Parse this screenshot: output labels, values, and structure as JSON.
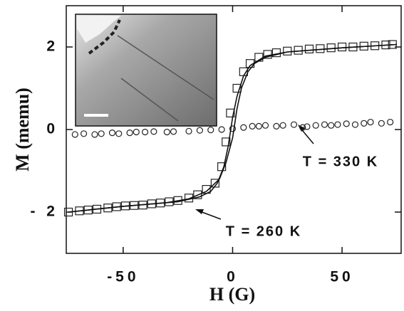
{
  "chart_data": {
    "type": "scatter",
    "xlabel": "H (G)",
    "ylabel": "M (memu)",
    "xlim": [
      -76,
      77
    ],
    "ylim": [
      -3,
      3
    ],
    "xticks": [
      -50,
      0,
      50
    ],
    "yticks": [
      {
        "value": -2,
        "label": "- 2"
      },
      0,
      2
    ],
    "series": [
      {
        "name": "T = 330 K",
        "marker": "circle",
        "color": "#222",
        "x": [
          -72,
          -68,
          -63,
          -60,
          -55,
          -52,
          -47,
          -44,
          -40,
          -36,
          -30,
          -27,
          -20,
          -15,
          -10,
          -5,
          0,
          5,
          9,
          12,
          15,
          20,
          23,
          28,
          32,
          34,
          38,
          42,
          45,
          48,
          52,
          56,
          60,
          63,
          68,
          72
        ],
        "values": [
          -0.12,
          -0.1,
          -0.12,
          -0.1,
          -0.08,
          -0.1,
          -0.08,
          -0.06,
          -0.06,
          -0.05,
          -0.06,
          -0.05,
          -0.04,
          -0.02,
          -0.01,
          0,
          0.02,
          0.05,
          0.08,
          0.08,
          0.1,
          0.08,
          0.1,
          0.12,
          0.05,
          0.07,
          0.1,
          0.12,
          0.1,
          0.12,
          0.14,
          0.12,
          0.15,
          0.18,
          0.15,
          0.18
        ]
      },
      {
        "name": "T = 260 K",
        "marker": "square",
        "color": "#222",
        "x": [
          -75,
          -70,
          -66,
          -62,
          -57,
          -53,
          -49,
          -45,
          -41,
          -37,
          -33,
          -29,
          -25,
          -20,
          -16,
          -12,
          -8,
          -5,
          -3,
          -1,
          2,
          5,
          8,
          12,
          16,
          20,
          25,
          30,
          35,
          40,
          45,
          50,
          55,
          60,
          65,
          70,
          73
        ],
        "values": [
          -2.0,
          -1.97,
          -1.95,
          -1.93,
          -1.9,
          -1.87,
          -1.85,
          -1.84,
          -1.83,
          -1.8,
          -1.78,
          -1.75,
          -1.72,
          -1.66,
          -1.58,
          -1.45,
          -1.3,
          -0.9,
          -0.3,
          0.4,
          1.0,
          1.4,
          1.6,
          1.75,
          1.82,
          1.86,
          1.9,
          1.92,
          1.95,
          1.96,
          1.98,
          2.0,
          2.0,
          2.02,
          2.03,
          2.05,
          2.06
        ]
      },
      {
        "marker": "line",
        "color": "#111",
        "x": [
          -75,
          -50,
          -30,
          -20,
          -12,
          -6,
          -3,
          0,
          2,
          4,
          7,
          10,
          15,
          25,
          50,
          75
        ],
        "values": [
          -2.0,
          -1.86,
          -1.77,
          -1.68,
          -1.5,
          -1.2,
          -0.8,
          -0.2,
          0.5,
          1.0,
          1.4,
          1.6,
          1.75,
          1.88,
          1.98,
          2.06
        ]
      },
      {
        "marker": "line",
        "color": "#111",
        "x": [
          75,
          50,
          25,
          15,
          8,
          5,
          2,
          0,
          -2,
          -4,
          -7,
          -10,
          -15,
          -25,
          -50,
          -75
        ],
        "values": [
          2.06,
          1.98,
          1.88,
          1.78,
          1.55,
          1.3,
          0.8,
          0.3,
          -0.4,
          -0.9,
          -1.3,
          -1.5,
          -1.63,
          -1.75,
          -1.86,
          -2.0
        ]
      }
    ]
  }
}
